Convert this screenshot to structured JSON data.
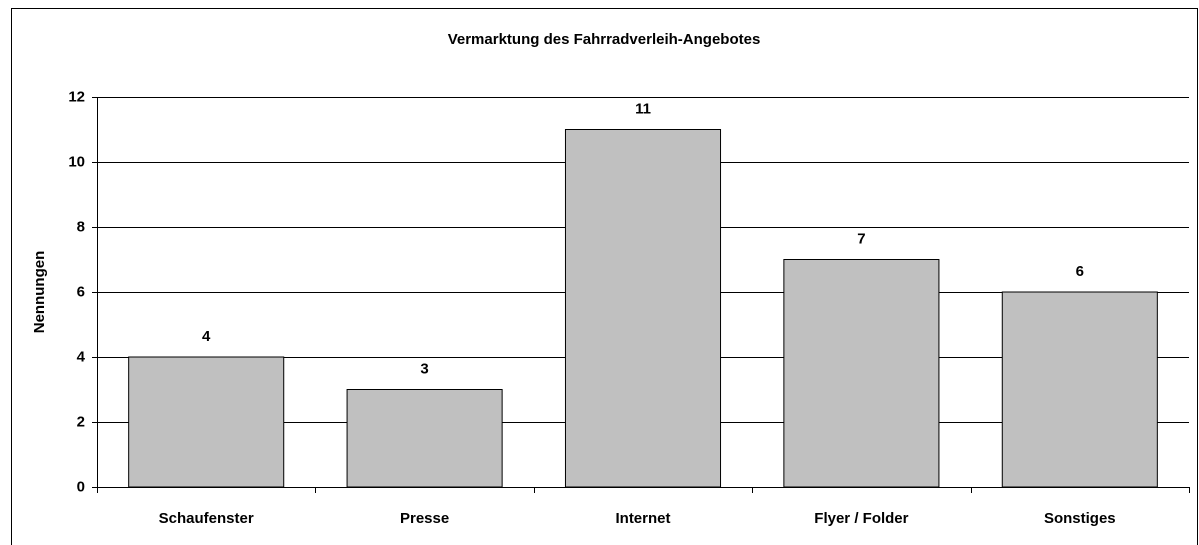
{
  "chart_data": {
    "type": "bar",
    "title": "Vermarktung des Fahrradverleih-Angebotes",
    "y_label": "Nennungen",
    "categories": [
      "Schaufenster",
      "Presse",
      "Internet",
      "Flyer / Folder",
      "Sonstiges"
    ],
    "values": [
      4,
      3,
      11,
      7,
      6
    ],
    "color": "#c0c0c0",
    "ylim": [
      0,
      12
    ],
    "yticks": [
      0,
      2,
      4,
      6,
      8,
      10,
      12
    ],
    "grid": true
  }
}
